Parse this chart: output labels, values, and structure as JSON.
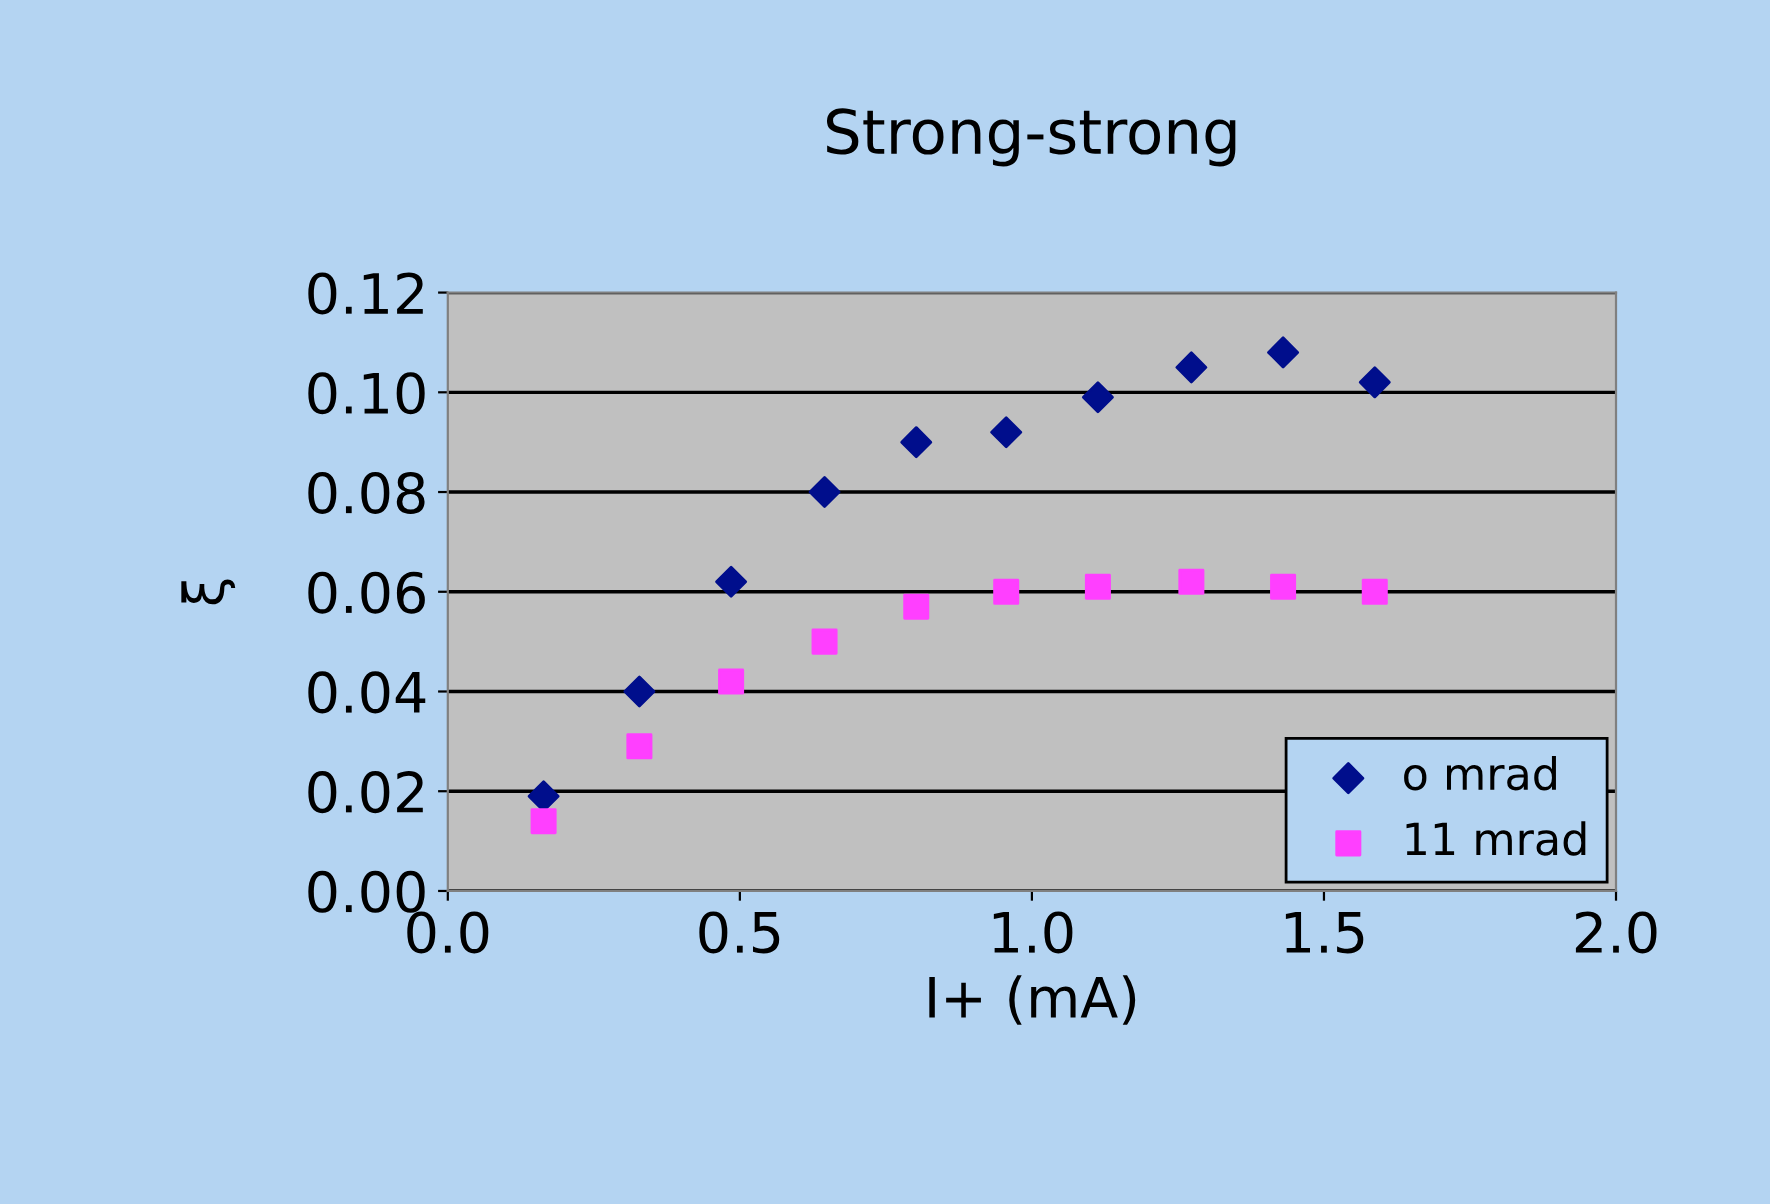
{
  "chart_data": {
    "type": "scatter",
    "title": "Strong-strong",
    "xlabel": "I+ (mA)",
    "ylabel": "ξ",
    "x": [
      0.164,
      0.328,
      0.485,
      0.645,
      0.802,
      0.956,
      1.113,
      1.273,
      1.43,
      1.587
    ],
    "series": [
      {
        "name": "o mrad",
        "color": "#000e8c",
        "marker": "diamond",
        "values": [
          0.019,
          0.04,
          0.062,
          0.08,
          0.09,
          0.092,
          0.099,
          0.105,
          0.108,
          0.102
        ]
      },
      {
        "name": "11 mrad",
        "color": "#ff3fff",
        "marker": "square",
        "values": [
          0.014,
          0.029,
          0.042,
          0.05,
          0.057,
          0.06,
          0.061,
          0.062,
          0.061,
          0.06
        ]
      }
    ],
    "xlim": [
      0,
      2
    ],
    "ylim": [
      0,
      0.12
    ],
    "xticks": [
      {
        "value": 0,
        "label": "0.0"
      },
      0.5,
      {
        "value": 1,
        "label": "1.0"
      },
      1.5,
      {
        "value": 2,
        "label": "2.0"
      }
    ],
    "yticks": [
      {
        "value": 0,
        "label": "0.00"
      },
      0.02,
      0.04,
      0.06,
      0.08,
      {
        "value": 0.1,
        "label": "0.10"
      },
      0.12
    ],
    "grid": "y",
    "legend": "bottom right"
  }
}
